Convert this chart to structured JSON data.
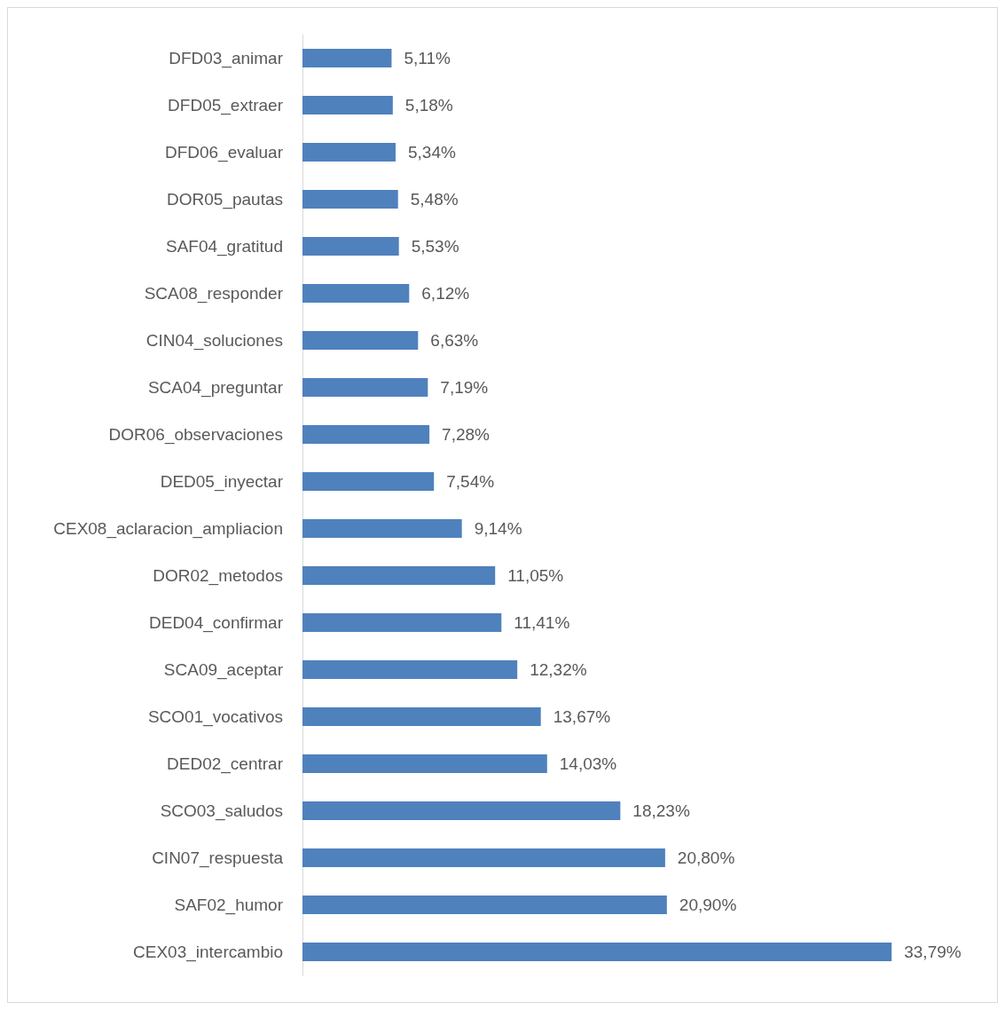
{
  "chart_data": {
    "type": "bar",
    "orientation": "horizontal",
    "color": "#4f81bd",
    "categories": [
      "DFD03_animar",
      "DFD05_extraer",
      "DFD06_evaluar",
      "DOR05_pautas",
      "SAF04_gratitud",
      "SCA08_responder",
      "CIN04_soluciones",
      "SCA04_preguntar",
      "DOR06_observaciones",
      "DED05_inyectar",
      "CEX08_aclaracion_ampliacion",
      "DOR02_metodos",
      "DED04_confirmar",
      "SCA09_aceptar",
      "SCO01_vocativos",
      "DED02_centrar",
      "SCO03_saludos",
      "CIN07_respuesta",
      "SAF02_humor",
      "CEX03_intercambio"
    ],
    "values": [
      5.11,
      5.18,
      5.34,
      5.48,
      5.53,
      6.12,
      6.63,
      7.19,
      7.28,
      7.54,
      9.14,
      11.05,
      11.41,
      12.32,
      13.67,
      14.03,
      18.23,
      20.8,
      20.9,
      33.79
    ],
    "value_labels": [
      "5,11%",
      "5,18%",
      "5,34%",
      "5,48%",
      "5,53%",
      "6,12%",
      "6,63%",
      "7,19%",
      "7,28%",
      "7,54%",
      "9,14%",
      "11,05%",
      "11,41%",
      "12,32%",
      "13,67%",
      "14,03%",
      "18,23%",
      "20,80%",
      "20,90%",
      "33,79%"
    ]
  }
}
